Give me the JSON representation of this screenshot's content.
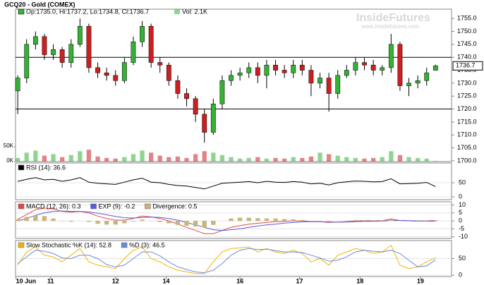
{
  "chart_data": {
    "type": "candlestick",
    "title": "GCQ20 - Gold (COMEX)",
    "ohlc_label": "Op:1735.0, Hi:1737.2, Lo:1734.8, Cl:1736.7",
    "volume_label": "Vol: 2.1K",
    "watermark": "InsideFutures",
    "watermark_url": "www.insidefutures.com",
    "last_price": 1736.7,
    "up_color": "#33b233",
    "down_color": "#cc1f1f",
    "xlim": [
      -0.25,
      48.8
    ],
    "xticks": [
      {
        "value": -0.2,
        "label": "10 Jun"
      },
      {
        "value": 3.7,
        "label": "11"
      },
      {
        "value": 11,
        "label": "12"
      },
      {
        "value": 16.7,
        "label": "14"
      },
      {
        "value": 25,
        "label": "16"
      },
      {
        "value": 31.7,
        "label": "17"
      },
      {
        "value": 38.5,
        "label": "18"
      },
      {
        "value": 45.3,
        "label": "19"
      }
    ],
    "ylim": [
      1699.7,
      1758.6
    ],
    "yticks": [
      {
        "value": 1700,
        "label": "1700.0"
      },
      {
        "value": 1705,
        "label": "1705.0"
      },
      {
        "value": 1710,
        "label": "1710.0"
      },
      {
        "value": 1715,
        "label": "1715.0"
      },
      {
        "value": 1720,
        "label": "1720.0"
      },
      {
        "value": 1725,
        "label": "1725.0"
      },
      {
        "value": 1730,
        "label": "1730.0"
      },
      {
        "value": 1735,
        "label": "1735.0"
      },
      {
        "value": 1740,
        "label": "1740.0"
      },
      {
        "value": 1745,
        "label": "1745.0"
      },
      {
        "value": 1750,
        "label": "1750.0"
      },
      {
        "value": 1755,
        "label": "1755.0"
      }
    ],
    "reference_lines": [
      1740,
      1720
    ],
    "open": [
      1727,
      1732,
      1745,
      1748,
      1741,
      1743,
      1738,
      1745,
      1752,
      1736,
      1734,
      1733,
      1731,
      1738,
      1746,
      1752,
      1738,
      1737,
      1731,
      1726,
      1724,
      1718,
      1711,
      1722,
      1731,
      1733,
      1734,
      1736,
      1733,
      1737,
      1735,
      1734,
      1737,
      1735,
      1730,
      1732,
      1726,
      1733,
      1735,
      1738,
      1737,
      1735,
      1736,
      1745,
      1729,
      1730,
      1731,
      1735.0
    ],
    "high": [
      1733,
      1747,
      1750,
      1749,
      1745,
      1744,
      1747,
      1755,
      1753,
      1738,
      1736,
      1735,
      1740,
      1748,
      1754,
      1753,
      1740,
      1738,
      1733,
      1728,
      1725,
      1720,
      1724,
      1733,
      1735,
      1736,
      1738,
      1738,
      1739,
      1739,
      1737,
      1739,
      1739,
      1737,
      1734,
      1734,
      1735,
      1737,
      1740,
      1740,
      1739,
      1737,
      1749,
      1746,
      1732,
      1733,
      1736,
      1737.2
    ],
    "low": [
      1718,
      1730,
      1743,
      1739,
      1739,
      1736,
      1736,
      1744,
      1734,
      1732,
      1731,
      1729,
      1730,
      1737,
      1744,
      1736,
      1734,
      1729,
      1724,
      1721,
      1715,
      1707,
      1710,
      1720,
      1729,
      1731,
      1732,
      1730,
      1728,
      1733,
      1732,
      1732,
      1733,
      1725,
      1728,
      1719,
      1724,
      1732,
      1733,
      1735,
      1733,
      1733,
      1734,
      1727,
      1725,
      1728,
      1729,
      1734.8
    ],
    "close": [
      1732,
      1745,
      1748,
      1741,
      1743,
      1738,
      1745,
      1752,
      1736,
      1734,
      1733,
      1731,
      1738,
      1746,
      1752,
      1738,
      1737,
      1731,
      1726,
      1724,
      1718,
      1711,
      1722,
      1731,
      1733,
      1734,
      1736,
      1733,
      1737,
      1735,
      1734,
      1737,
      1735,
      1730,
      1732,
      1726,
      1733,
      1735,
      1738,
      1737,
      1735,
      1736,
      1745,
      1729,
      1730,
      1731,
      1734,
      1736.7
    ],
    "volume": {
      "ylim": [
        0,
        514
      ],
      "yticks": [
        {
          "value": 0,
          "label": "0K"
        },
        {
          "value": 50,
          "label": "50K"
        }
      ],
      "values": [
        12,
        30,
        37,
        20,
        25,
        15,
        22,
        35,
        40,
        17,
        12,
        10,
        15,
        25,
        37,
        30,
        20,
        15,
        17,
        12,
        25,
        35,
        30,
        22,
        15,
        10,
        12,
        15,
        10,
        12,
        10,
        15,
        12,
        17,
        30,
        25,
        20,
        15,
        12,
        10,
        12,
        15,
        35,
        22,
        15,
        12,
        10,
        2.1
      ]
    },
    "panels": [
      {
        "ylim": [
          -10,
          120
        ],
        "yticks": [
          0,
          50
        ],
        "series": [
          {
            "name": "RSI (14): 36.6",
            "type": "line",
            "color": "#000000",
            "values": [
              55,
              62,
              68,
              60,
              62,
              55,
              60,
              68,
              52,
              48,
              46,
              44,
              52,
              60,
              66,
              52,
              50,
              44,
              40,
              38,
              33,
              28,
              38,
              48,
              50,
              52,
              54,
              50,
              55,
              52,
              51,
              54,
              52,
              46,
              48,
              42,
              50,
              53,
              56,
              55,
              53,
              54,
              64,
              46,
              47,
              48,
              51,
              36.6
            ]
          }
        ]
      },
      {
        "ylim": [
          -11,
          12
        ],
        "yticks": [
          -10,
          -5,
          0,
          5,
          10
        ],
        "series": [
          {
            "name": "MACD (12, 26): 0.3",
            "type": "line",
            "color": "#e04848",
            "values": [
              1,
              4,
              7,
              8,
              7.5,
              6,
              5.5,
              6,
              5,
              3,
              1.5,
              0.5,
              0.5,
              1.5,
              3,
              2.5,
              1.5,
              0,
              -2,
              -4,
              -6,
              -8,
              -8,
              -6,
              -4,
              -3,
              -2,
              -1.5,
              -1,
              -0.5,
              -0.3,
              0,
              0,
              -0.5,
              -0.5,
              -1,
              -0.8,
              -0.5,
              0,
              0.2,
              0.1,
              0.2,
              1.2,
              0.3,
              0,
              -0.2,
              0,
              0.3
            ]
          },
          {
            "name": "EXP (9): -0.2",
            "type": "line",
            "color": "#5a5ae0",
            "values": [
              0,
              1.5,
              3.5,
              5,
              6,
              6.2,
              6,
              6,
              5.6,
              4.8,
              3.8,
              2.8,
              2,
              1.8,
              2.2,
              2.4,
              2.2,
              1.5,
              0.5,
              -1,
              -2.5,
              -4,
              -5.5,
              -6,
              -5.5,
              -5,
              -4,
              -3.2,
              -2.5,
              -2,
              -1.4,
              -1,
              -0.6,
              -0.5,
              -0.5,
              -0.7,
              -0.8,
              -0.7,
              -0.5,
              -0.3,
              -0.2,
              -0.1,
              0.3,
              0.3,
              0.2,
              0,
              -0.1,
              -0.2
            ]
          },
          {
            "name": "Divergence: 0.5",
            "type": "bar",
            "color": "#c8b478",
            "values": [
              1,
              2.5,
              3.5,
              3,
              1.5,
              -0.2,
              -0.5,
              0,
              -0.6,
              -1.8,
              -2.3,
              -2.3,
              -1.5,
              -0.3,
              0.8,
              0.1,
              -0.7,
              -1.5,
              -2.5,
              -3,
              -3.5,
              -4,
              -2.5,
              0,
              1.5,
              2,
              2,
              1.7,
              1.5,
              1.5,
              1.1,
              1,
              0.6,
              0,
              0,
              -0.3,
              0,
              0.2,
              0.5,
              0.5,
              0.3,
              0.3,
              0.9,
              0,
              -0.2,
              -0.2,
              0.1,
              0.5
            ]
          }
        ]
      },
      {
        "ylim": [
          -4,
          104
        ],
        "yticks": [
          0,
          50
        ],
        "series": [
          {
            "name": "Slow Stochastic %K (14): 52.8",
            "type": "line",
            "color": "#f0b400",
            "values": [
              30,
              70,
              85,
              60,
              55,
              40,
              60,
              80,
              40,
              30,
              25,
              20,
              50,
              75,
              85,
              50,
              40,
              25,
              15,
              10,
              5,
              5,
              40,
              70,
              80,
              82,
              85,
              70,
              80,
              70,
              65,
              75,
              65,
              40,
              50,
              30,
              60,
              70,
              80,
              75,
              65,
              70,
              90,
              30,
              20,
              25,
              40,
              52.8
            ]
          },
          {
            "name": "%D (3): 46.5",
            "type": "line",
            "color": "#6a8ae0",
            "values": [
              35,
              55,
              75,
              72,
              65,
              52,
              50,
              60,
              60,
              50,
              32,
              25,
              30,
              50,
              70,
              70,
              58,
              40,
              25,
              17,
              10,
              7,
              15,
              35,
              60,
              75,
              80,
              77,
              78,
              74,
              70,
              70,
              68,
              60,
              52,
              42,
              45,
              55,
              70,
              75,
              72,
              70,
              75,
              65,
              45,
              25,
              28,
              46.5
            ]
          }
        ]
      }
    ]
  }
}
